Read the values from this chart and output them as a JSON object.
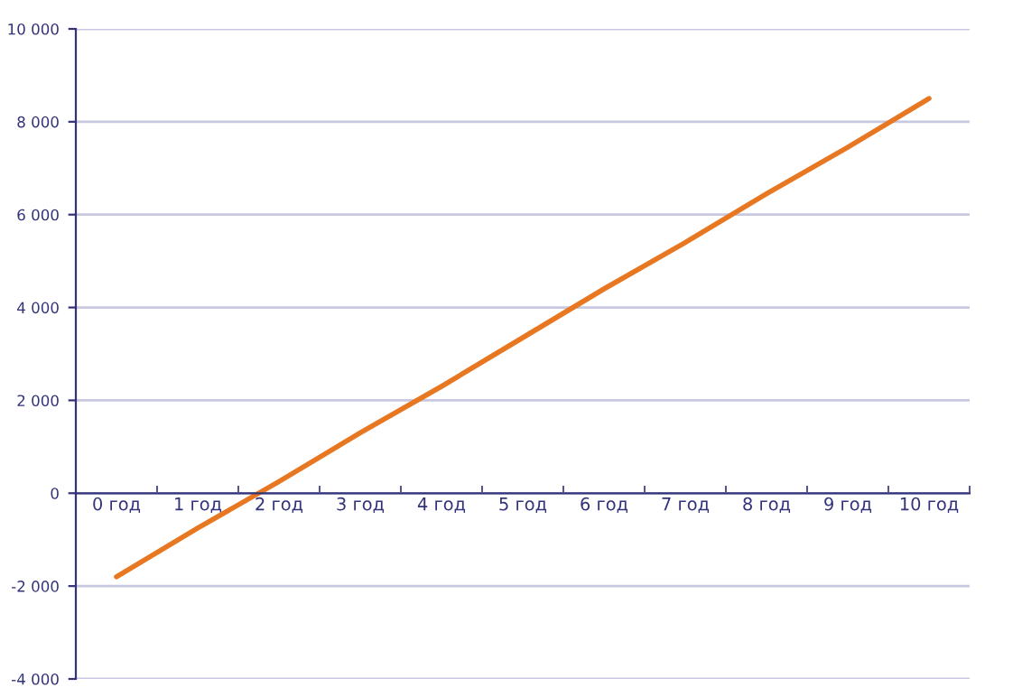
{
  "chart_data": {
    "type": "line",
    "categories": [
      "0 год",
      "1 год",
      "2 год",
      "3 год",
      "4 год",
      "5 год",
      "6 год",
      "7 год",
      "8 год",
      "9 год",
      "10 год"
    ],
    "series": [
      {
        "color": "#e87722",
        "values": [
          -1800,
          -750,
          250,
          1300,
          2300,
          3350,
          4400,
          5400,
          6450,
          7450,
          8500
        ]
      }
    ],
    "ylim": [
      -4000,
      10000
    ],
    "yticks": [
      {
        "value": -4000,
        "label": "-4 000"
      },
      {
        "value": -2000,
        "label": "-2 000"
      },
      0,
      {
        "value": 2000,
        "label": "2 000"
      },
      {
        "value": 4000,
        "label": "4 000"
      },
      {
        "value": 6000,
        "label": "6 000"
      },
      {
        "value": 8000,
        "label": "8 000"
      },
      {
        "value": 10000,
        "label": "10 000"
      }
    ],
    "grid": "y",
    "marker": "none",
    "line_style": "solid"
  }
}
